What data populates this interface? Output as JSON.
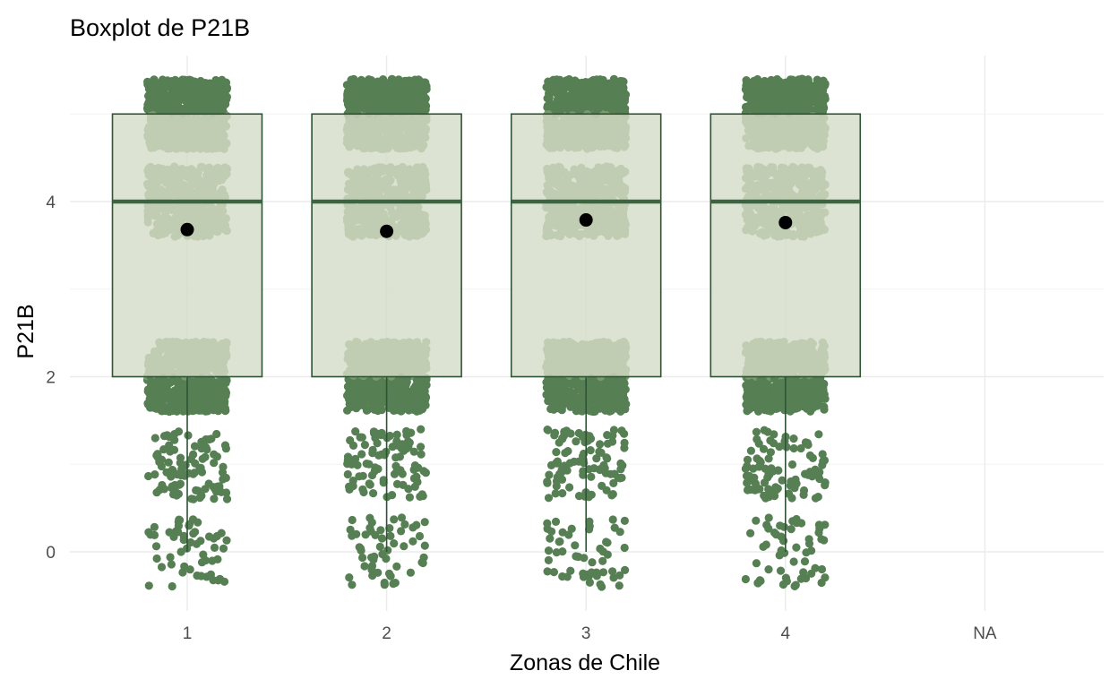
{
  "chart_data": {
    "type": "boxplot",
    "title": "Boxplot de P21B",
    "xlabel": "Zonas de Chile",
    "ylabel": "P21B",
    "categories": [
      "1",
      "2",
      "3",
      "4",
      "NA"
    ],
    "y_ticks": [
      0,
      2,
      4
    ],
    "ylim": [
      -0.45,
      5.7
    ],
    "grid": true,
    "boxes": [
      {
        "category": "1",
        "min": 0,
        "q1": 2,
        "median": 4,
        "q3": 5,
        "max": 5,
        "mean": 3.68
      },
      {
        "category": "2",
        "min": 0,
        "q1": 2,
        "median": 4,
        "q3": 5,
        "max": 5,
        "mean": 3.66
      },
      {
        "category": "3",
        "min": 0,
        "q1": 2,
        "median": 4,
        "q3": 5,
        "max": 5,
        "mean": 3.79
      },
      {
        "category": "4",
        "min": 0,
        "q1": 2,
        "median": 4,
        "q3": 5,
        "max": 5,
        "mean": 3.76
      }
    ],
    "jitter_points": {
      "values_shown": [
        0,
        1,
        2,
        4,
        5
      ],
      "jitter_width": 0.4,
      "jitter_height": 0.4
    },
    "colors": {
      "box_fill": "#d3dbc5",
      "box_stroke": "#2f5335",
      "median": "#3d6441",
      "point_light": "#7a9a6e",
      "point_dark": "#567f54",
      "mean_point": "#000000"
    }
  }
}
